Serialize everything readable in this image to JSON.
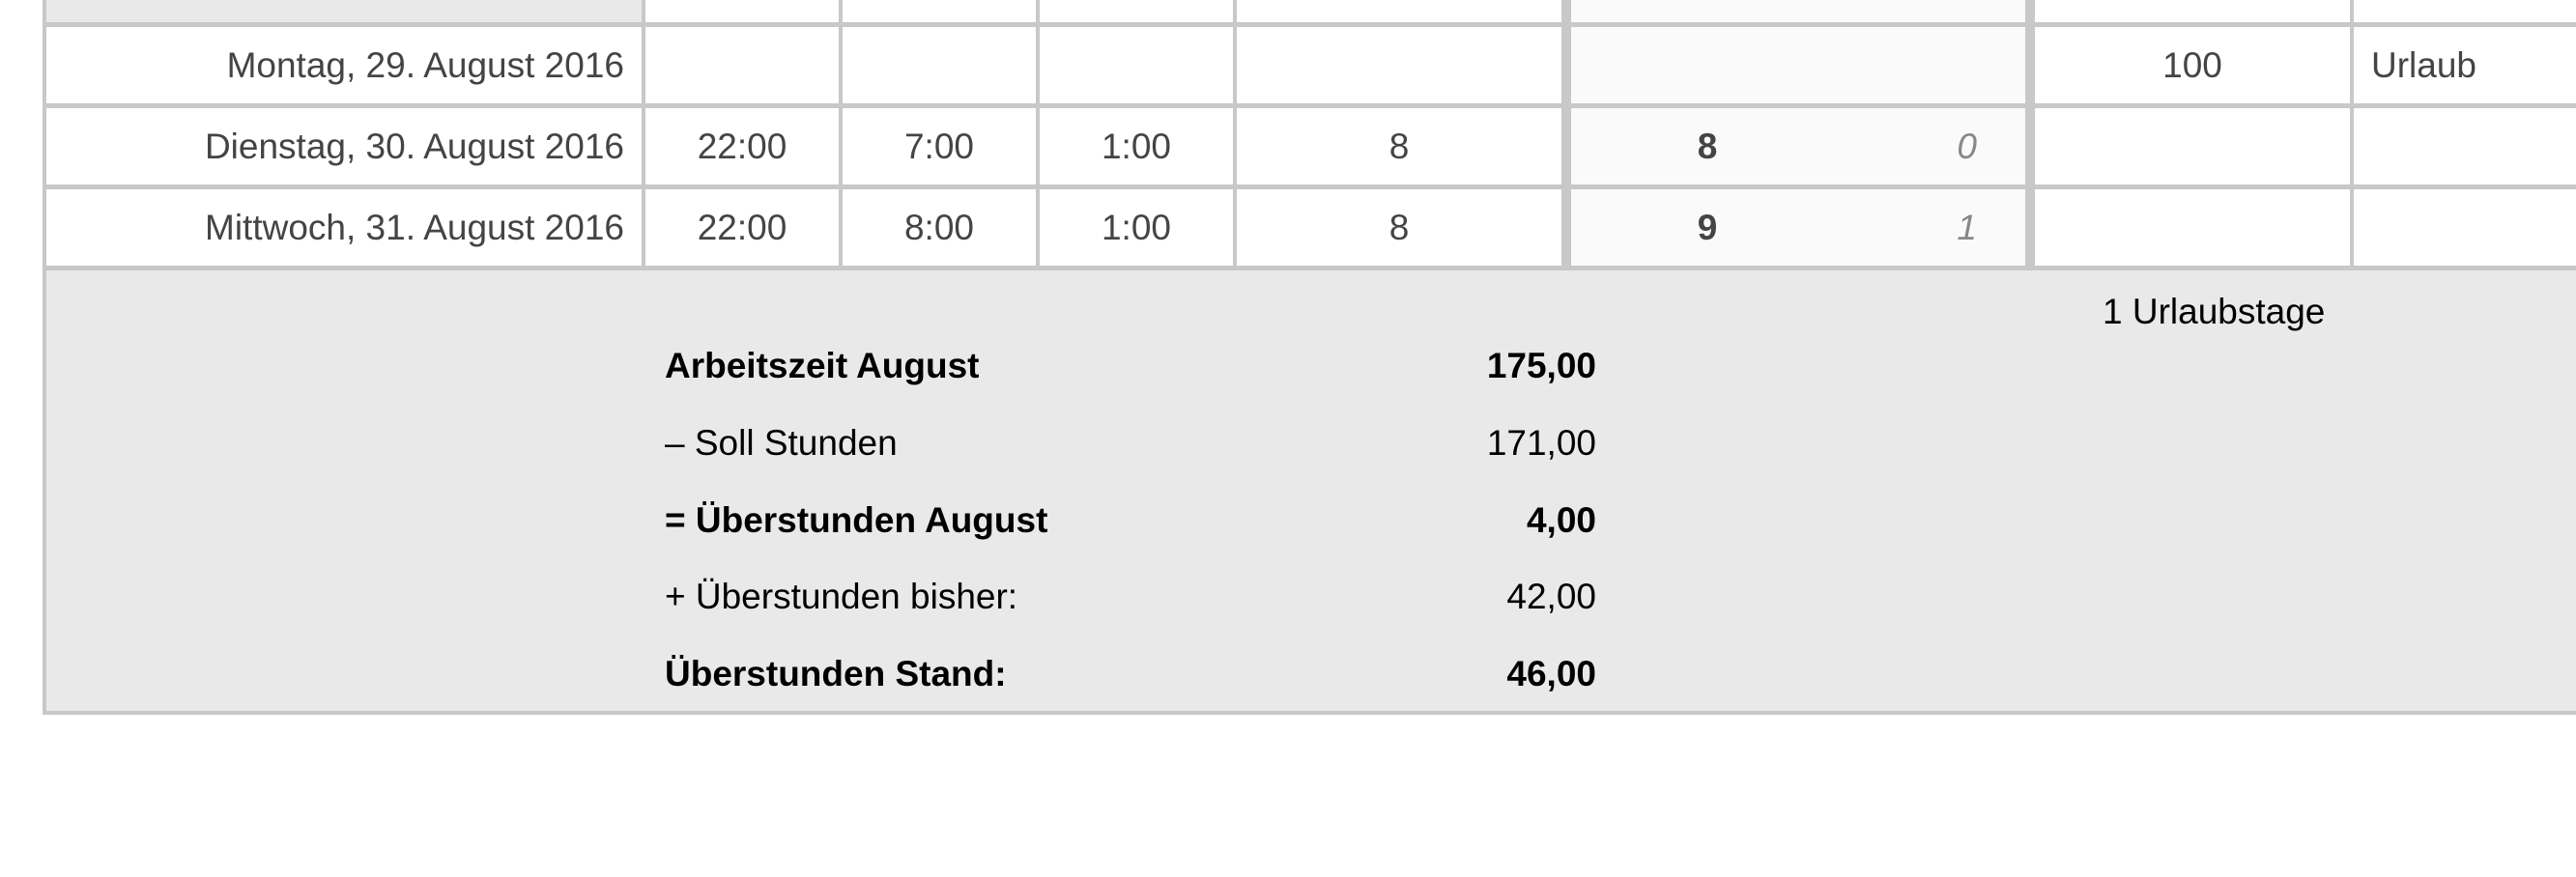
{
  "rows": [
    {
      "date": "",
      "cols": [
        "",
        "",
        "",
        "",
        "",
        "",
        "",
        ""
      ],
      "weekend": true
    },
    {
      "date": "Montag, 29. August 2016",
      "cols": [
        "",
        "",
        "",
        "",
        "",
        "",
        "100",
        "Urlaub"
      ]
    },
    {
      "date": "Dienstag, 30. August 2016",
      "cols": [
        "22:00",
        "7:00",
        "1:00",
        "8",
        "8",
        "0",
        "",
        ""
      ]
    },
    {
      "date": "Mittwoch, 31. August 2016",
      "cols": [
        "22:00",
        "8:00",
        "1:00",
        "8",
        "9",
        "1",
        "",
        ""
      ]
    }
  ],
  "summary": {
    "vacation_days": "1 Urlaubstage",
    "lines": [
      {
        "label": "Arbeitszeit August",
        "value": "175,00",
        "bold": true
      },
      {
        "label": "– Soll Stunden",
        "value": "171,00",
        "bold": false
      },
      {
        "label": "= Überstunden August",
        "value": "4,00",
        "bold": true
      },
      {
        "label": "+ Überstunden bisher:",
        "value": "42,00",
        "bold": false
      },
      {
        "label": "Überstunden Stand:",
        "value": "46,00",
        "bold": true
      }
    ]
  },
  "colors": {
    "border": "#c8c8c8",
    "summary_bg": "#e9e9e9",
    "text": "#444444",
    "diff_text": "#888888"
  }
}
